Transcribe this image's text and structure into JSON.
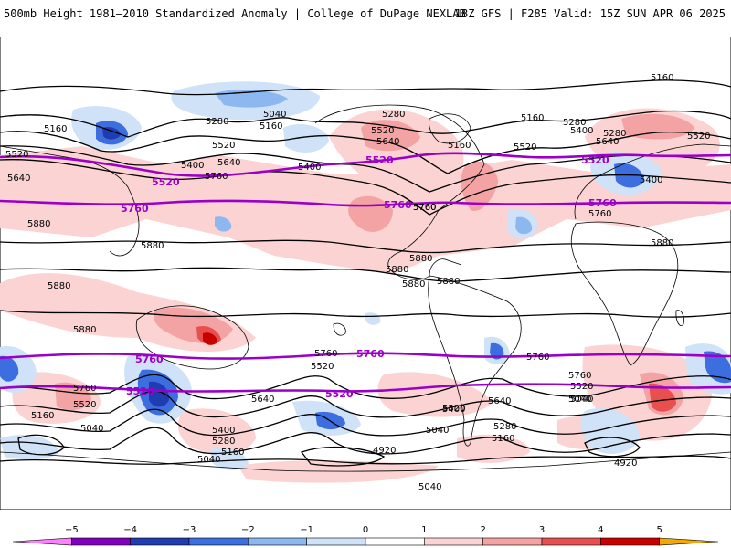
{
  "header": {
    "title": "500mb Height 1981–2010 Standardized Anomaly | College of DuPage NEXLAB",
    "run_info": "18Z GFS | F285 Valid: 15Z SUN APR 06 2025"
  },
  "map": {
    "projection": "global cylindrical (equirectangular)",
    "colors": {
      "contour": "#000000",
      "highlight_contour": "#9b00c8",
      "pos1": "#fbd3d3",
      "pos2": "#f3a3a3",
      "pos3": "#e85050",
      "pos4": "#c80000",
      "pos5": "#f5a800",
      "neg1": "#cfe2f7",
      "neg2": "#8cb8ef",
      "neg3": "#3c6ee0",
      "neg4": "#1f3cb0",
      "neg5": "#8000c0",
      "coastline": "#000000"
    },
    "contour_labels": {
      "north": [
        "5160",
        "5040",
        "5160",
        "5280",
        "5160",
        "5280",
        "5160",
        "5280",
        "5400",
        "5160",
        "5640",
        "5520",
        "5280",
        "5520",
        "5640",
        "5520",
        "5400",
        "5520",
        "5760",
        "5640",
        "5400",
        "5520",
        "5640",
        "5400",
        "5760"
      ],
      "subtropics_north": [
        "5880",
        "5880",
        "5880",
        "5880",
        "5880",
        "5880",
        "5880",
        "5760",
        "5760",
        "5880"
      ],
      "subtropics_south": [
        "5880",
        "5760",
        "5760",
        "5760",
        "5520",
        "5760",
        "5520",
        "5640",
        "5640",
        "5520",
        "5040"
      ],
      "south": [
        "5160",
        "5040",
        "5520",
        "5400",
        "5280",
        "5160",
        "5040",
        "5040",
        "4920",
        "5040",
        "5400",
        "5280",
        "5160",
        "4920",
        "5040"
      ],
      "highlight": [
        "5520",
        "5520",
        "5520",
        "5760",
        "5760",
        "5760",
        "5760",
        "5760",
        "5520",
        "5520"
      ]
    }
  },
  "colorbar": {
    "ticks": [
      "−5",
      "−4",
      "−3",
      "−2",
      "−1",
      "0",
      "1",
      "2",
      "3",
      "4",
      "5"
    ],
    "colors": [
      "#ff80ff",
      "#8000c0",
      "#1f3cb0",
      "#3c6ee0",
      "#8cb8ef",
      "#cfe2f7",
      "#ffffff",
      "#fbd3d3",
      "#f3a3a3",
      "#e85050",
      "#c80000",
      "#f5a800"
    ]
  }
}
